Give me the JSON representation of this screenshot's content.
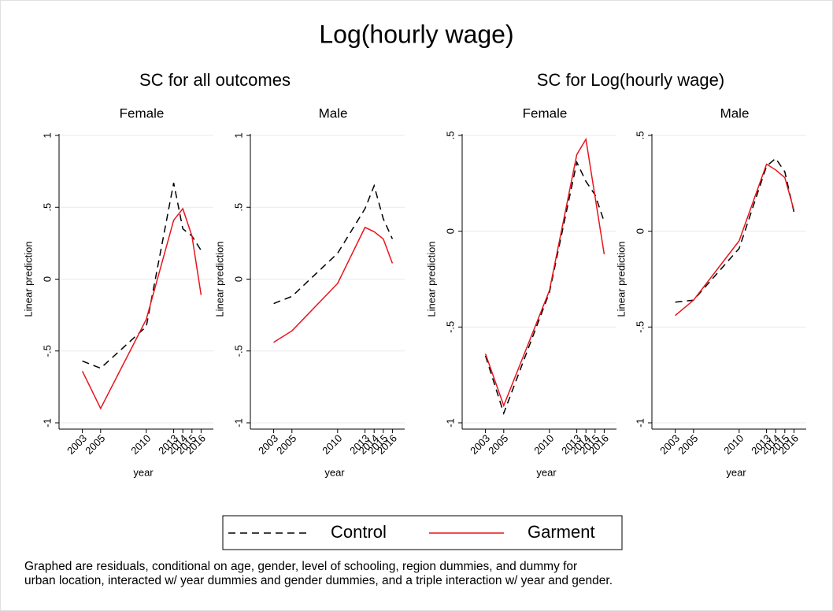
{
  "figure": {
    "title": "Log(hourly wage)",
    "group_titles": [
      "SC for all outcomes",
      "SC for Log(hourly wage)"
    ],
    "note": [
      "Graphed are residuals, conditional on age, gender, level of schooling, region dummies, and dummy for",
      "urban location, interacted w/ year dummies and gender dummies, and a triple interaction w/ year and gender."
    ]
  },
  "chart_data": [
    {
      "type": "line",
      "title": "Female",
      "x_label": "year",
      "y_label": "Linear prediction",
      "x": [
        2003,
        2005,
        2010,
        2013,
        2014,
        2015,
        2016
      ],
      "xlim": [
        2002,
        2017
      ],
      "xticks": [
        2003,
        2005,
        2010,
        2013,
        2014,
        2015,
        2016
      ],
      "ylim": [
        -1,
        1
      ],
      "yticks": [
        -1,
        {
          "value": -0.5,
          "label": "-.5"
        },
        0,
        {
          "value": 0.5,
          "label": ".5"
        },
        1
      ],
      "grid": true,
      "series": [
        {
          "name": "Control",
          "color": "#000000",
          "style": "dashed",
          "values": [
            -0.57,
            -0.62,
            -0.33,
            0.67,
            0.35,
            0.3,
            0.2
          ]
        },
        {
          "name": "Garment",
          "color": "#e8141c",
          "style": "solid",
          "values": [
            -0.64,
            -0.9,
            -0.28,
            0.41,
            0.49,
            0.3,
            -0.11
          ]
        }
      ]
    },
    {
      "type": "line",
      "title": "Male",
      "x_label": "year",
      "y_label": "Linear prediction",
      "x": [
        2003,
        2005,
        2010,
        2013,
        2014,
        2015,
        2016
      ],
      "xlim": [
        2002,
        2017
      ],
      "xticks": [
        2003,
        2005,
        2010,
        2013,
        2014,
        2015,
        2016
      ],
      "ylim": [
        -1,
        1
      ],
      "yticks": [
        -1,
        {
          "value": -0.5,
          "label": "-.5"
        },
        0,
        {
          "value": 0.5,
          "label": ".5"
        },
        1
      ],
      "grid": true,
      "series": [
        {
          "name": "Control",
          "color": "#000000",
          "style": "dashed",
          "values": [
            -0.17,
            -0.12,
            0.18,
            0.49,
            0.65,
            0.42,
            0.28
          ]
        },
        {
          "name": "Garment",
          "color": "#e8141c",
          "style": "solid",
          "values": [
            -0.44,
            -0.36,
            -0.03,
            0.36,
            0.33,
            0.28,
            0.11
          ]
        }
      ]
    },
    {
      "type": "line",
      "title": "Female",
      "x_label": "year",
      "y_label": "Linear prediction",
      "x": [
        2003,
        2005,
        2010,
        2013,
        2014,
        2015,
        2016
      ],
      "xlim": [
        2002,
        2017
      ],
      "xticks": [
        2003,
        2005,
        2010,
        2013,
        2014,
        2015,
        2016
      ],
      "ylim": [
        -1,
        0.5
      ],
      "yticks": [
        -1,
        {
          "value": -0.5,
          "label": "-.5"
        },
        0,
        {
          "value": 0.5,
          "label": ".5"
        }
      ],
      "grid": true,
      "series": [
        {
          "name": "Control",
          "color": "#000000",
          "style": "dashed",
          "values": [
            -0.65,
            -0.95,
            -0.32,
            0.36,
            0.26,
            0.19,
            0.05
          ]
        },
        {
          "name": "Garment",
          "color": "#e8141c",
          "style": "solid",
          "values": [
            -0.64,
            -0.91,
            -0.31,
            0.4,
            0.48,
            0.18,
            -0.12
          ]
        }
      ]
    },
    {
      "type": "line",
      "title": "Male",
      "x_label": "year",
      "y_label": "Linear prediction",
      "x": [
        2003,
        2005,
        2010,
        2013,
        2014,
        2015,
        2016
      ],
      "xlim": [
        2002,
        2017
      ],
      "xticks": [
        2003,
        2005,
        2010,
        2013,
        2014,
        2015,
        2016
      ],
      "ylim": [
        -1,
        0.5
      ],
      "yticks": [
        -1,
        {
          "value": -0.5,
          "label": "-.5"
        },
        0,
        {
          "value": 0.5,
          "label": ".5"
        }
      ],
      "grid": true,
      "series": [
        {
          "name": "Control",
          "color": "#000000",
          "style": "dashed",
          "values": [
            -0.37,
            -0.36,
            -0.09,
            0.34,
            0.38,
            0.31,
            0.1
          ]
        },
        {
          "name": "Garment",
          "color": "#e8141c",
          "style": "solid",
          "values": [
            -0.44,
            -0.36,
            -0.05,
            0.35,
            0.32,
            0.28,
            0.11
          ]
        }
      ]
    }
  ]
}
